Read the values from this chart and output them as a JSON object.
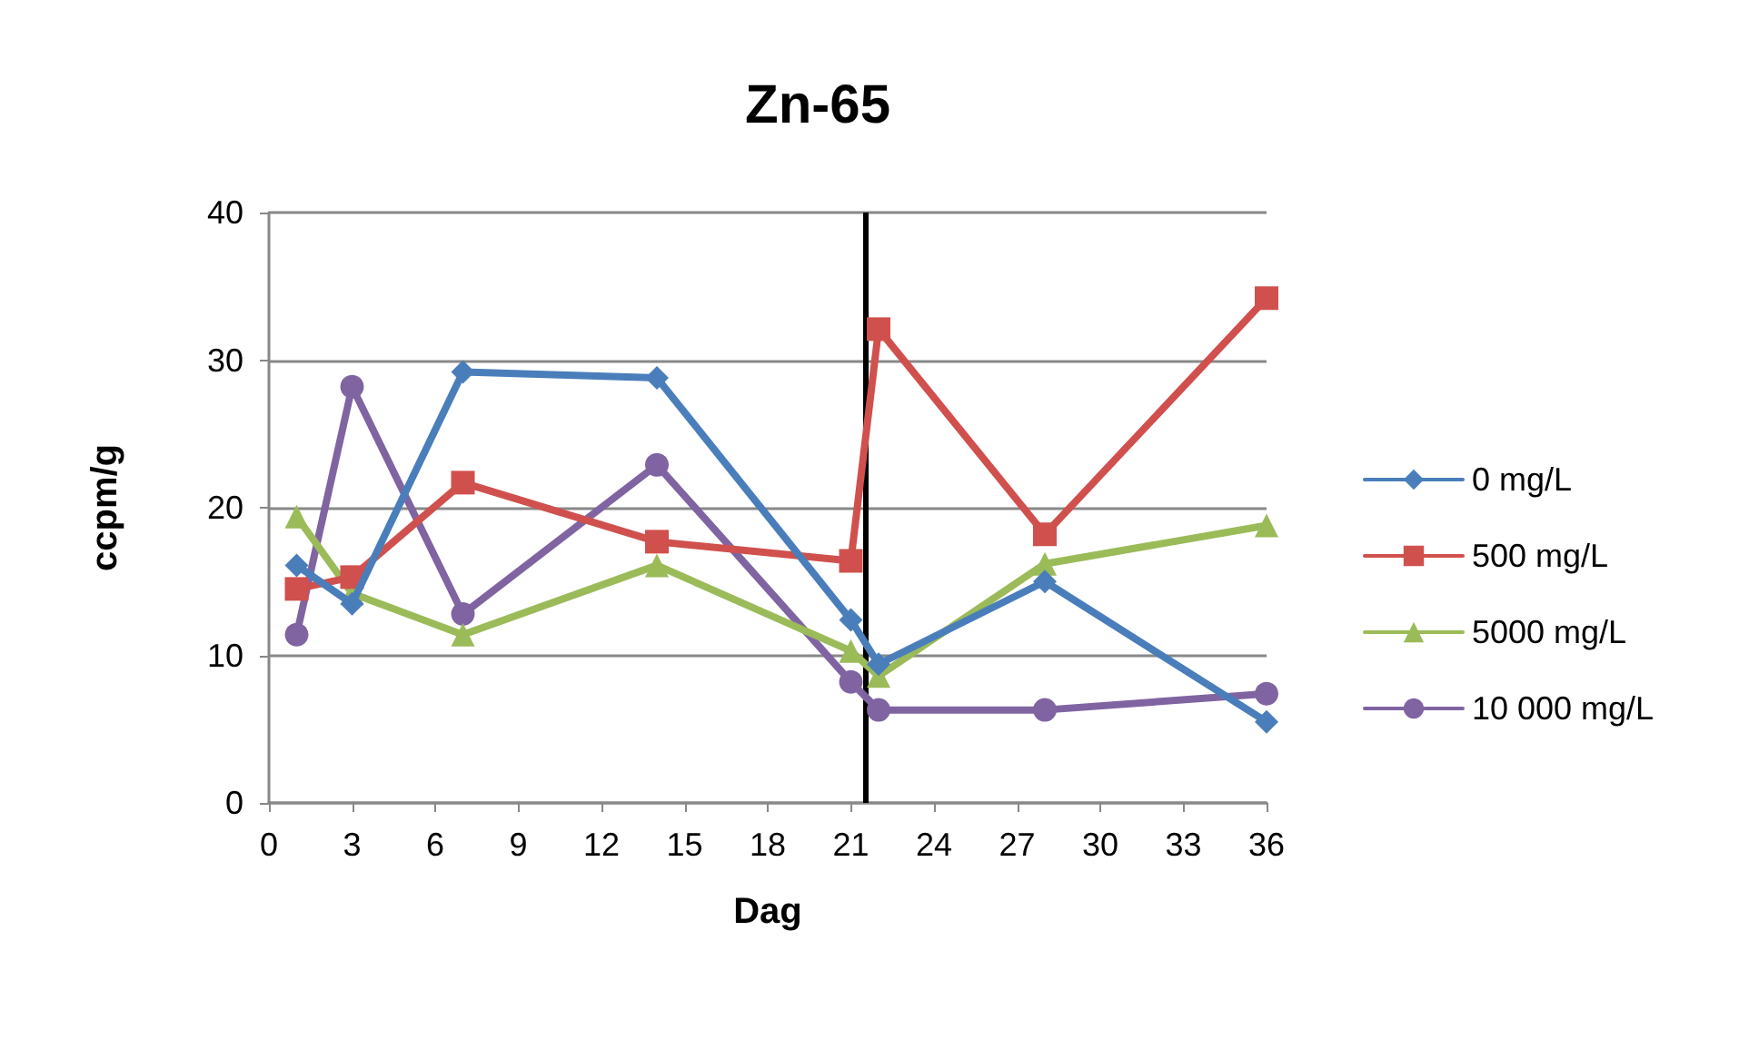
{
  "chart_data": {
    "type": "line",
    "title": "Zn-65",
    "xlabel": "Dag",
    "ylabel": "ccpm/g",
    "x": [
      1,
      3,
      7,
      14,
      21,
      22,
      28,
      36
    ],
    "series": [
      {
        "name": "0 mg/L",
        "color": "#4a7ebb",
        "marker": "diamond",
        "values": [
          16.1,
          13.5,
          29.2,
          28.8,
          12.4,
          9.4,
          15.0,
          5.5
        ]
      },
      {
        "name": "500 mg/L",
        "color": "#d0504d",
        "marker": "square",
        "values": [
          14.5,
          15.3,
          21.7,
          17.7,
          16.4,
          32.1,
          18.2,
          34.2
        ]
      },
      {
        "name": "5000 mg/L",
        "color": "#9bbb59",
        "marker": "triangle",
        "values": [
          19.4,
          14.2,
          11.4,
          16.1,
          10.3,
          8.6,
          16.2,
          18.8
        ]
      },
      {
        "name": "10 000 mg/L",
        "color": "#8064a2",
        "marker": "circle",
        "values": [
          11.4,
          28.2,
          12.8,
          22.9,
          8.2,
          6.3,
          6.3,
          7.4
        ]
      }
    ],
    "xlim": [
      0,
      36
    ],
    "xticks": [
      0,
      3,
      6,
      9,
      12,
      15,
      18,
      21,
      24,
      27,
      30,
      33,
      36
    ],
    "ylim": [
      0,
      40
    ],
    "yticks": [
      0,
      10,
      20,
      30,
      40
    ],
    "ref_lines": [
      {
        "axis": "x",
        "value": 21.5,
        "color": "#000000"
      }
    ],
    "grid": "y",
    "legend": "right",
    "line_style": "solid"
  }
}
